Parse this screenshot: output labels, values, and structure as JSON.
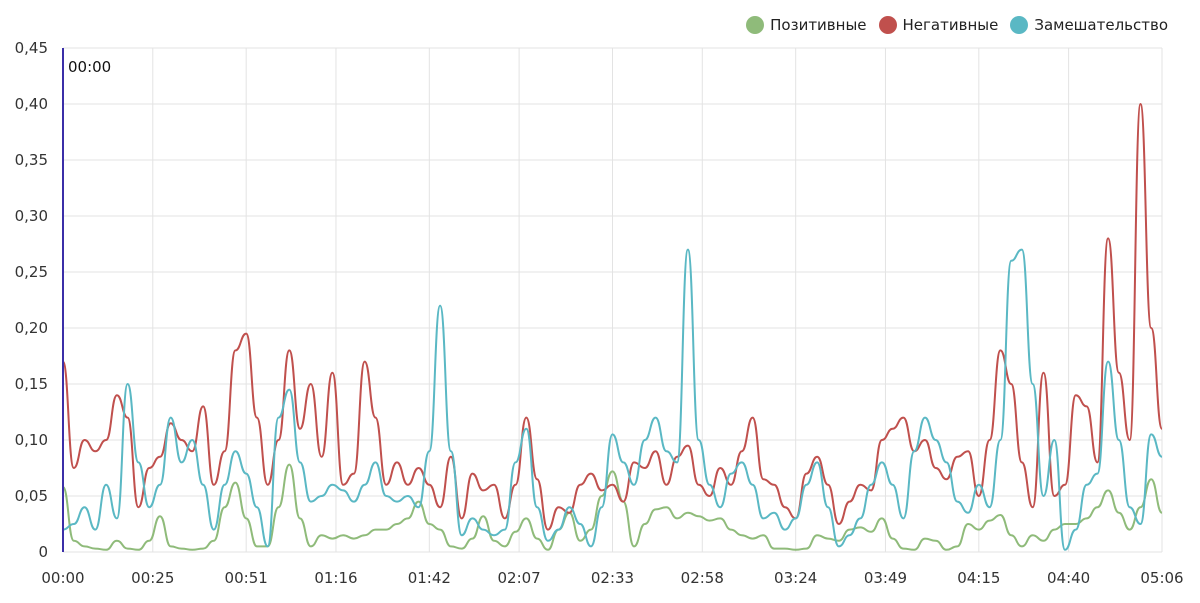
{
  "chart_data": {
    "type": "line",
    "title": "",
    "xlabel": "",
    "ylabel": "",
    "ylim": [
      0,
      0.45
    ],
    "y_ticks": [
      "0",
      "0,05",
      "0,10",
      "0,15",
      "0,20",
      "0,25",
      "0,30",
      "0,35",
      "0,40",
      "0,45"
    ],
    "x_ticks": [
      "00:00",
      "00:25",
      "00:51",
      "01:16",
      "01:42",
      "02:07",
      "02:33",
      "02:58",
      "03:24",
      "03:49",
      "04:15",
      "04:40",
      "05:06"
    ],
    "x_tick_seconds": [
      0,
      25,
      51,
      76,
      102,
      127,
      153,
      178,
      204,
      229,
      255,
      280,
      306
    ],
    "xlim_seconds": [
      0,
      306
    ],
    "grid": true,
    "legend_position": "top-right",
    "cursor_label": "00:00",
    "cursor_seconds": 0,
    "x": [
      0,
      3,
      6,
      9,
      12,
      15,
      18,
      21,
      24,
      27,
      30,
      33,
      36,
      39,
      42,
      45,
      48,
      51,
      54,
      57,
      60,
      63,
      66,
      69,
      72,
      75,
      78,
      81,
      84,
      87,
      90,
      93,
      96,
      99,
      102,
      105,
      108,
      111,
      114,
      117,
      120,
      123,
      126,
      129,
      132,
      135,
      138,
      141,
      144,
      147,
      150,
      153,
      156,
      159,
      162,
      165,
      168,
      171,
      174,
      177,
      180,
      183,
      186,
      189,
      192,
      195,
      198,
      201,
      204,
      207,
      210,
      213,
      216,
      219,
      222,
      225,
      228,
      231,
      234,
      237,
      240,
      243,
      246,
      249,
      252,
      255,
      258,
      261,
      264,
      267,
      270,
      273,
      276,
      279,
      282,
      285,
      288,
      291,
      294,
      297,
      300,
      303,
      306
    ],
    "series": [
      {
        "name": "Позитивные",
        "color": "#8fbb7a",
        "values": [
          0.058,
          0.01,
          0.005,
          0.003,
          0.002,
          0.01,
          0.003,
          0.002,
          0.01,
          0.032,
          0.005,
          0.003,
          0.002,
          0.003,
          0.01,
          0.04,
          0.062,
          0.03,
          0.005,
          0.005,
          0.04,
          0.078,
          0.03,
          0.005,
          0.015,
          0.012,
          0.015,
          0.012,
          0.015,
          0.02,
          0.02,
          0.025,
          0.03,
          0.045,
          0.025,
          0.02,
          0.005,
          0.003,
          0.012,
          0.032,
          0.01,
          0.005,
          0.018,
          0.03,
          0.012,
          0.002,
          0.02,
          0.035,
          0.01,
          0.02,
          0.05,
          0.072,
          0.045,
          0.005,
          0.025,
          0.038,
          0.04,
          0.03,
          0.035,
          0.032,
          0.028,
          0.03,
          0.02,
          0.015,
          0.012,
          0.015,
          0.003,
          0.003,
          0.002,
          0.003,
          0.015,
          0.012,
          0.01,
          0.02,
          0.022,
          0.018,
          0.03,
          0.012,
          0.003,
          0.002,
          0.012,
          0.01,
          0.002,
          0.005,
          0.025,
          0.02,
          0.028,
          0.033,
          0.015,
          0.005,
          0.015,
          0.01,
          0.02,
          0.025,
          0.025,
          0.03,
          0.04,
          0.055,
          0.035,
          0.02,
          0.04,
          0.065,
          0.035
        ]
      },
      {
        "name": "Негативные",
        "color": "#c0504d",
        "values": [
          0.17,
          0.075,
          0.1,
          0.09,
          0.1,
          0.14,
          0.12,
          0.04,
          0.075,
          0.085,
          0.115,
          0.1,
          0.09,
          0.13,
          0.06,
          0.09,
          0.18,
          0.195,
          0.12,
          0.06,
          0.1,
          0.18,
          0.11,
          0.15,
          0.085,
          0.16,
          0.06,
          0.07,
          0.17,
          0.12,
          0.06,
          0.08,
          0.06,
          0.075,
          0.06,
          0.04,
          0.085,
          0.03,
          0.07,
          0.055,
          0.06,
          0.03,
          0.06,
          0.12,
          0.065,
          0.02,
          0.04,
          0.035,
          0.06,
          0.07,
          0.055,
          0.06,
          0.045,
          0.08,
          0.075,
          0.09,
          0.06,
          0.085,
          0.095,
          0.06,
          0.05,
          0.075,
          0.06,
          0.09,
          0.12,
          0.065,
          0.06,
          0.04,
          0.03,
          0.07,
          0.085,
          0.06,
          0.025,
          0.045,
          0.06,
          0.055,
          0.1,
          0.11,
          0.12,
          0.09,
          0.1,
          0.075,
          0.065,
          0.085,
          0.09,
          0.05,
          0.1,
          0.18,
          0.15,
          0.08,
          0.04,
          0.16,
          0.05,
          0.06,
          0.14,
          0.13,
          0.08,
          0.28,
          0.16,
          0.1,
          0.4,
          0.2,
          0.11
        ]
      },
      {
        "name": "Замешательство",
        "color": "#5ab8c4",
        "values": [
          0.02,
          0.025,
          0.04,
          0.02,
          0.06,
          0.03,
          0.15,
          0.08,
          0.04,
          0.06,
          0.12,
          0.08,
          0.1,
          0.06,
          0.02,
          0.06,
          0.09,
          0.07,
          0.04,
          0.005,
          0.12,
          0.145,
          0.08,
          0.045,
          0.05,
          0.06,
          0.055,
          0.045,
          0.06,
          0.08,
          0.05,
          0.045,
          0.05,
          0.04,
          0.09,
          0.22,
          0.09,
          0.015,
          0.03,
          0.02,
          0.015,
          0.02,
          0.08,
          0.11,
          0.04,
          0.01,
          0.02,
          0.04,
          0.025,
          0.005,
          0.04,
          0.105,
          0.08,
          0.06,
          0.1,
          0.12,
          0.09,
          0.08,
          0.27,
          0.1,
          0.06,
          0.04,
          0.07,
          0.08,
          0.06,
          0.03,
          0.035,
          0.02,
          0.03,
          0.06,
          0.08,
          0.04,
          0.005,
          0.015,
          0.03,
          0.06,
          0.08,
          0.06,
          0.03,
          0.09,
          0.12,
          0.1,
          0.08,
          0.045,
          0.035,
          0.06,
          0.04,
          0.1,
          0.26,
          0.27,
          0.15,
          0.05,
          0.1,
          0.002,
          0.02,
          0.06,
          0.07,
          0.17,
          0.1,
          0.04,
          0.025,
          0.105,
          0.085
        ]
      }
    ]
  }
}
